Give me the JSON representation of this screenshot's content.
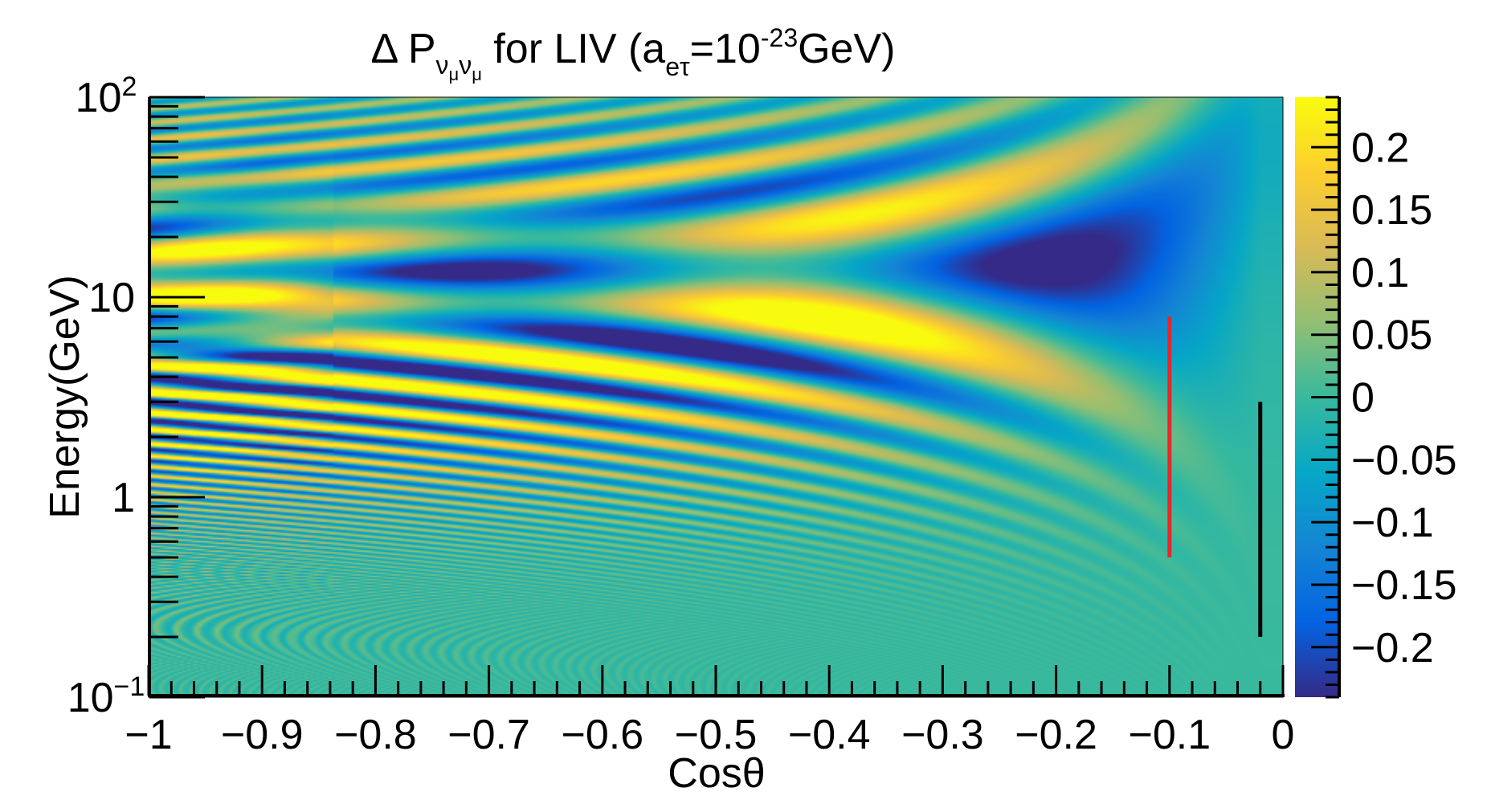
{
  "chart_data": {
    "type": "heatmap",
    "title": {
      "prefix": "Δ P",
      "sub1": "ν",
      "sub1b": "μ",
      "sub2": "ν",
      "sub2b": "μ",
      "middle": " for LIV (a",
      "sub3": "eτ",
      "eq": "=10",
      "sup": "-23",
      "suffix": "GeV)"
    },
    "xlabel": "Cosθ",
    "ylabel": "Energy(GeV)",
    "x_scale": "linear",
    "y_scale": "log",
    "xlim": [
      -1,
      0
    ],
    "ylim": [
      0.1,
      100
    ],
    "x_ticks": [
      -1,
      -0.9,
      -0.8,
      -0.7,
      -0.6,
      -0.5,
      -0.4,
      -0.3,
      -0.2,
      -0.1,
      0
    ],
    "x_tick_labels": [
      "−1",
      "−0.9",
      "−0.8",
      "−0.7",
      "−0.6",
      "−0.5",
      "−0.4",
      "−0.3",
      "−0.2",
      "−0.1",
      "0"
    ],
    "y_tick_labels": [
      {
        "value": 0.1,
        "base": "10",
        "exp": "−1"
      },
      {
        "value": 1,
        "base": "1",
        "exp": ""
      },
      {
        "value": 10,
        "base": "10",
        "exp": ""
      },
      {
        "value": 100,
        "base": "10",
        "exp": "2"
      }
    ],
    "colorbar": {
      "range": [
        -0.24,
        0.24
      ],
      "ticks": [
        0.2,
        0.15,
        0.1,
        0.05,
        0,
        -0.05,
        -0.1,
        -0.15,
        -0.2
      ],
      "tick_labels": [
        "0.2",
        "0.15",
        "0.1",
        "0.05",
        "0",
        "−0.05",
        "−0.1",
        "−0.15",
        "−0.2"
      ],
      "palette": [
        "#352a87",
        "#0363e1",
        "#1485d4",
        "#06a7c6",
        "#38b99e",
        "#92bf73",
        "#d9ba56",
        "#fcce2e",
        "#f9fb0e"
      ]
    },
    "markers": [
      {
        "name": "red-line",
        "cos": -0.1,
        "e_min": 0.5,
        "e_max": 8,
        "color": "#e8262b"
      },
      {
        "name": "black-line",
        "cos": -0.02,
        "e_min": 0.2,
        "e_max": 3,
        "color": "#000000"
      }
    ]
  }
}
